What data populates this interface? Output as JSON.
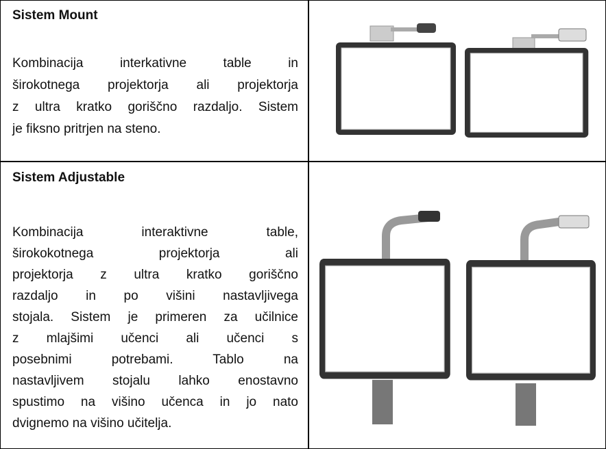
{
  "table": {
    "rows": [
      {
        "title": "Sistem Mount",
        "lines": [
          "Kombinacija interkativne table in",
          "širokotnega projektorja ali projektorja",
          "z ultra kratko goriščno razdaljo. Sistem",
          "je fiksno pritrjen na steno."
        ]
      },
      {
        "title": "Sistem Adjustable",
        "lines": [
          "Kombinacija interaktivne table,",
          "širokokotnega projektorja ali",
          "projektorja z ultra kratko goriščno",
          "razdaljo in po višini nastavljivega",
          "stojala. Sistem je primeren za učilnice",
          "z mlajšimi učenci ali učenci s",
          "posebnimi potrebami. Tablo na",
          "nastavljivem stojalu lahko enostavno",
          "spustimo na višino učenca in jo nato",
          "dvignemo na višino učitelja."
        ]
      }
    ]
  }
}
